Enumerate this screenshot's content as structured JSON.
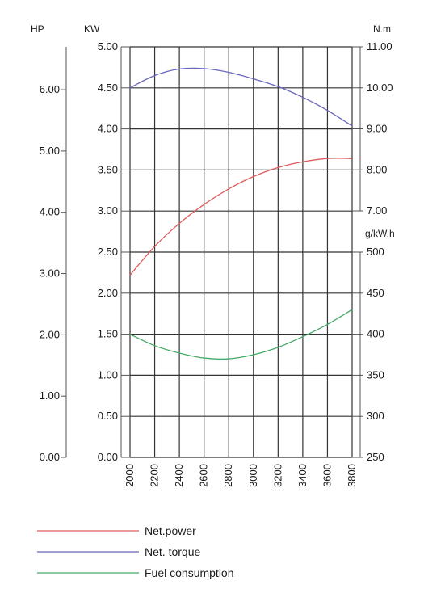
{
  "chart_data": {
    "type": "line",
    "x": [
      2000,
      2200,
      2400,
      2600,
      2800,
      3000,
      3200,
      3400,
      3600,
      3800
    ],
    "x_tick_labels": [
      "2000",
      "2200",
      "2400",
      "2600",
      "2800",
      "3000",
      "3200",
      "3400",
      "3600",
      "3800"
    ],
    "xlim": [
      2000,
      3800
    ],
    "axes": {
      "hp": {
        "label": "HP",
        "ticks": [
          0,
          1,
          2,
          3,
          4,
          5,
          6
        ],
        "tick_labels": [
          "0.00",
          "1.00",
          "2.00",
          "3.00",
          "4.00",
          "5.00",
          "6.00"
        ],
        "ylim": [
          0,
          6.7
        ]
      },
      "kw": {
        "label": "KW",
        "ticks": [
          0,
          0.5,
          1,
          1.5,
          2,
          2.5,
          3,
          3.5,
          4,
          4.5,
          5
        ],
        "tick_labels": [
          "0.00",
          "0.50",
          "1.00",
          "1.50",
          "2.00",
          "2.50",
          "3.00",
          "3.50",
          "4.00",
          "4.50",
          "5.00"
        ],
        "ylim": [
          0,
          5
        ]
      },
      "torque": {
        "label": "N.m",
        "ticks": [
          7,
          8,
          9,
          10,
          11
        ],
        "tick_labels": [
          "7.00",
          "8.00",
          "9.00",
          "10.00",
          "11.00"
        ],
        "ylim": [
          7,
          11
        ]
      },
      "fuel": {
        "label": "g/kW.h",
        "ticks": [
          250,
          300,
          350,
          400,
          450,
          500
        ],
        "tick_labels": [
          "250",
          "300",
          "350",
          "400",
          "450",
          "500"
        ],
        "ylim": [
          250,
          500
        ]
      }
    },
    "series": [
      {
        "name": "Net.power",
        "axis": "kw",
        "color": "#e05a5a",
        "values": [
          2.22,
          2.57,
          2.85,
          3.08,
          3.27,
          3.42,
          3.53,
          3.6,
          3.64,
          3.64
        ]
      },
      {
        "name": "Net. torque",
        "axis": "torque",
        "color": "#6666bb",
        "values": [
          10.0,
          10.3,
          10.46,
          10.47,
          10.38,
          10.22,
          10.03,
          9.77,
          9.45,
          9.07
        ]
      },
      {
        "name": "Fuel consumption",
        "axis": "fuel",
        "color": "#44aa66",
        "values": [
          400,
          386,
          377,
          371,
          370,
          375,
          384,
          397,
          412,
          430
        ]
      }
    ],
    "grid": true,
    "legend": "bottom-left"
  }
}
